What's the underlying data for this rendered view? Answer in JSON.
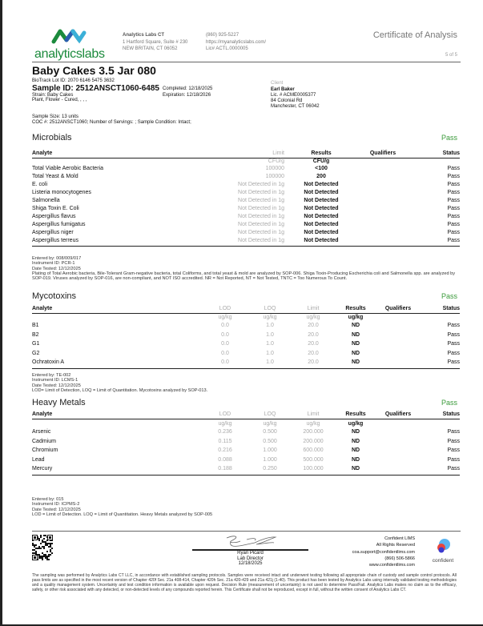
{
  "header": {
    "logo_text": "analyticslabs",
    "company": "Analytics Labs CT",
    "address1": "1 Hartford Square, Suite # 230",
    "address2": "NEW BRITAIN, CT 06052",
    "phone": "(860) 925-5227",
    "website": "https://myanalyticslabs.com/",
    "license": "Lic# ACTL.0000005",
    "doc_title": "Certificate of Analysis",
    "page": "5 of 5"
  },
  "sample": {
    "title": "Baby Cakes 3.5 Jar 080",
    "biotrack": "BioTrack Lot ID: 2070 6146 5475 3632",
    "sample_id": "Sample ID: 2512ANSCT1060-6485",
    "completed": "Completed: 12/18/2025",
    "expiration": "Expiration: 12/18/2026",
    "strain": "Strain: Baby Cakes",
    "type": "Plant, Flower - Cured, , , ,",
    "size": "Sample Size: 13 units",
    "coc": "COC #: 2512ANSCT1060; Number of Servings: ; Sample Condition: Intact;"
  },
  "client": {
    "label": "Client",
    "name": "Earl Baker",
    "license": "Lic. # ACME0005377",
    "street": "84 Colonial Rd",
    "city": "Manchester, CT 06042"
  },
  "colors": {
    "pass": "#3a9a3a"
  },
  "microbials": {
    "title": "Microbials",
    "status": "Pass",
    "headers": [
      "Analyte",
      "Limit",
      "Results",
      "Qualifiers",
      "Status"
    ],
    "units": [
      "",
      "CFU/g",
      "CFU/g",
      "",
      ""
    ],
    "rows": [
      [
        "Total Viable Aerobic Bacteria",
        "100000",
        "<100",
        "",
        "Pass"
      ],
      [
        "Total Yeast & Mold",
        "100000",
        "200",
        "",
        "Pass"
      ],
      [
        "E. coli",
        "Not Detected in 1g",
        "Not Detected",
        "",
        "Pass"
      ],
      [
        "Listeria monocytogenes",
        "Not Detected in 1g",
        "Not Detected",
        "",
        "Pass"
      ],
      [
        "Salmonella",
        "Not Detected in 1g",
        "Not Detected",
        "",
        "Pass"
      ],
      [
        "Shiga Toxin E. Coli",
        "Not Detected in 1g",
        "Not Detected",
        "",
        "Pass"
      ],
      [
        "Aspergillus flavus",
        "Not Detected in 1g",
        "Not Detected",
        "",
        "Pass"
      ],
      [
        "Aspergillus fumigatus",
        "Not Detected in 1g",
        "Not Detected",
        "",
        "Pass"
      ],
      [
        "Aspergillus niger",
        "Not Detected in 1g",
        "Not Detected",
        "",
        "Pass"
      ],
      [
        "Aspergillus terreus",
        "Not Detected in 1g",
        "Not Detected",
        "",
        "Pass"
      ]
    ],
    "notes": [
      "Entered by: 008/009/017",
      "Instrument ID: PCR-1",
      "Date Tested: 12/12/2025",
      "Plating of Total Aerobic bacteria, Bile-Tolerant Gram-negative bacteria, total Coliforms, and total yeast & mold are analyzed by SOP-006. Shiga Toxin-Producing Escherichia coli and Salmonella spp. are analyzed by SOP-019. Viruses analyzed by SOP-016, are non-compliant, and NOT ISO accredited. NR = Not Reported, NT = Not Tested, TNTC = Too Numerous To Count."
    ]
  },
  "mycotoxins": {
    "title": "Mycotoxins",
    "status": "Pass",
    "headers": [
      "Analyte",
      "LOD",
      "LOQ",
      "Limit",
      "Results",
      "Qualifiers",
      "Status"
    ],
    "units": [
      "",
      "ug/kg",
      "ug/kg",
      "ug/kg",
      "ug/kg",
      "",
      ""
    ],
    "rows": [
      [
        "B1",
        "0.0",
        "1.0",
        "20.0",
        "ND",
        "",
        "Pass"
      ],
      [
        "B2",
        "0.0",
        "1.0",
        "20.0",
        "ND",
        "",
        "Pass"
      ],
      [
        "G1",
        "0.0",
        "1.0",
        "20.0",
        "ND",
        "",
        "Pass"
      ],
      [
        "G2",
        "0.0",
        "1.0",
        "20.0",
        "ND",
        "",
        "Pass"
      ],
      [
        "Ochratoxin A",
        "0.0",
        "1.0",
        "20.0",
        "ND",
        "",
        "Pass"
      ]
    ],
    "notes": [
      "Entered by: TE-002",
      "Instrument ID: LCMS-1",
      "Date Tested: 12/12/2025",
      "LOD= Limit of Detection, LOQ = Limit of Quantitation. Mycotoxins analyzed by SOP-013."
    ]
  },
  "heavy_metals": {
    "title": "Heavy Metals",
    "status": "Pass",
    "headers": [
      "Analyte",
      "LOD",
      "LOQ",
      "Limit",
      "Results",
      "Qualifiers",
      "Status"
    ],
    "units": [
      "",
      "ug/kg",
      "ug/kg",
      "ug/kg",
      "ug/kg",
      "",
      ""
    ],
    "rows": [
      [
        "Arsenic",
        "0.236",
        "0.500",
        "200.000",
        "ND",
        "",
        "Pass"
      ],
      [
        "Cadmium",
        "0.115",
        "0.500",
        "200.000",
        "ND",
        "",
        "Pass"
      ],
      [
        "Chromium",
        "0.216",
        "1.000",
        "600.000",
        "ND",
        "",
        "Pass"
      ],
      [
        "Lead",
        "0.088",
        "1.000",
        "500.000",
        "ND",
        "",
        "Pass"
      ],
      [
        "Mercury",
        "0.188",
        "0.250",
        "100.000",
        "ND",
        "",
        "Pass"
      ]
    ],
    "notes": [
      "Entered by: 015",
      "Instrument ID: ICPMS-2",
      "Date Tested: 12/12/2025",
      "LOD = Limit of Detection. LOQ = Limit of Quantitation. Heavy Metals analyzed by SOP-005"
    ]
  },
  "footer": {
    "signer": "Ryan Picard",
    "signer_title": "Lab Director",
    "sign_date": "12/18/2025",
    "lims": "Confident LIMS",
    "rights": "All Rights Reserved",
    "email": "coa.support@confidentlims.com",
    "phone": "(866) 506-5866",
    "web": "www.confidentlims.com",
    "lims_logo": "confident",
    "disclaimer": "The sampling was performed by Analytics Labs CT LLC, in accordance with established sampling protocols. Samples were received intact and underwent testing following all appropriate chain of custody and sample control protocols. All pass limits are as specified in the most recent version of Chapter 420f Sec. 21a 408-414, Chapter 420h Sec. 21a 420-429 and 21a 421j (1-40). This product has been tested by Analytics Labs using internally validated testing methodologies and a quality management system. Uncertainty and test condition information is available upon request. Decision Rule (measurement of uncertainty) is not used to determine Pass/Fail. Analytics Labs makes no claim as to the efficacy, safety, or other risk associated with any detected, or non-detected levels of any compounds reported herein. This Certificate shall not be reproduced, except in full, without the written consent of Analytics Labs CT."
  }
}
